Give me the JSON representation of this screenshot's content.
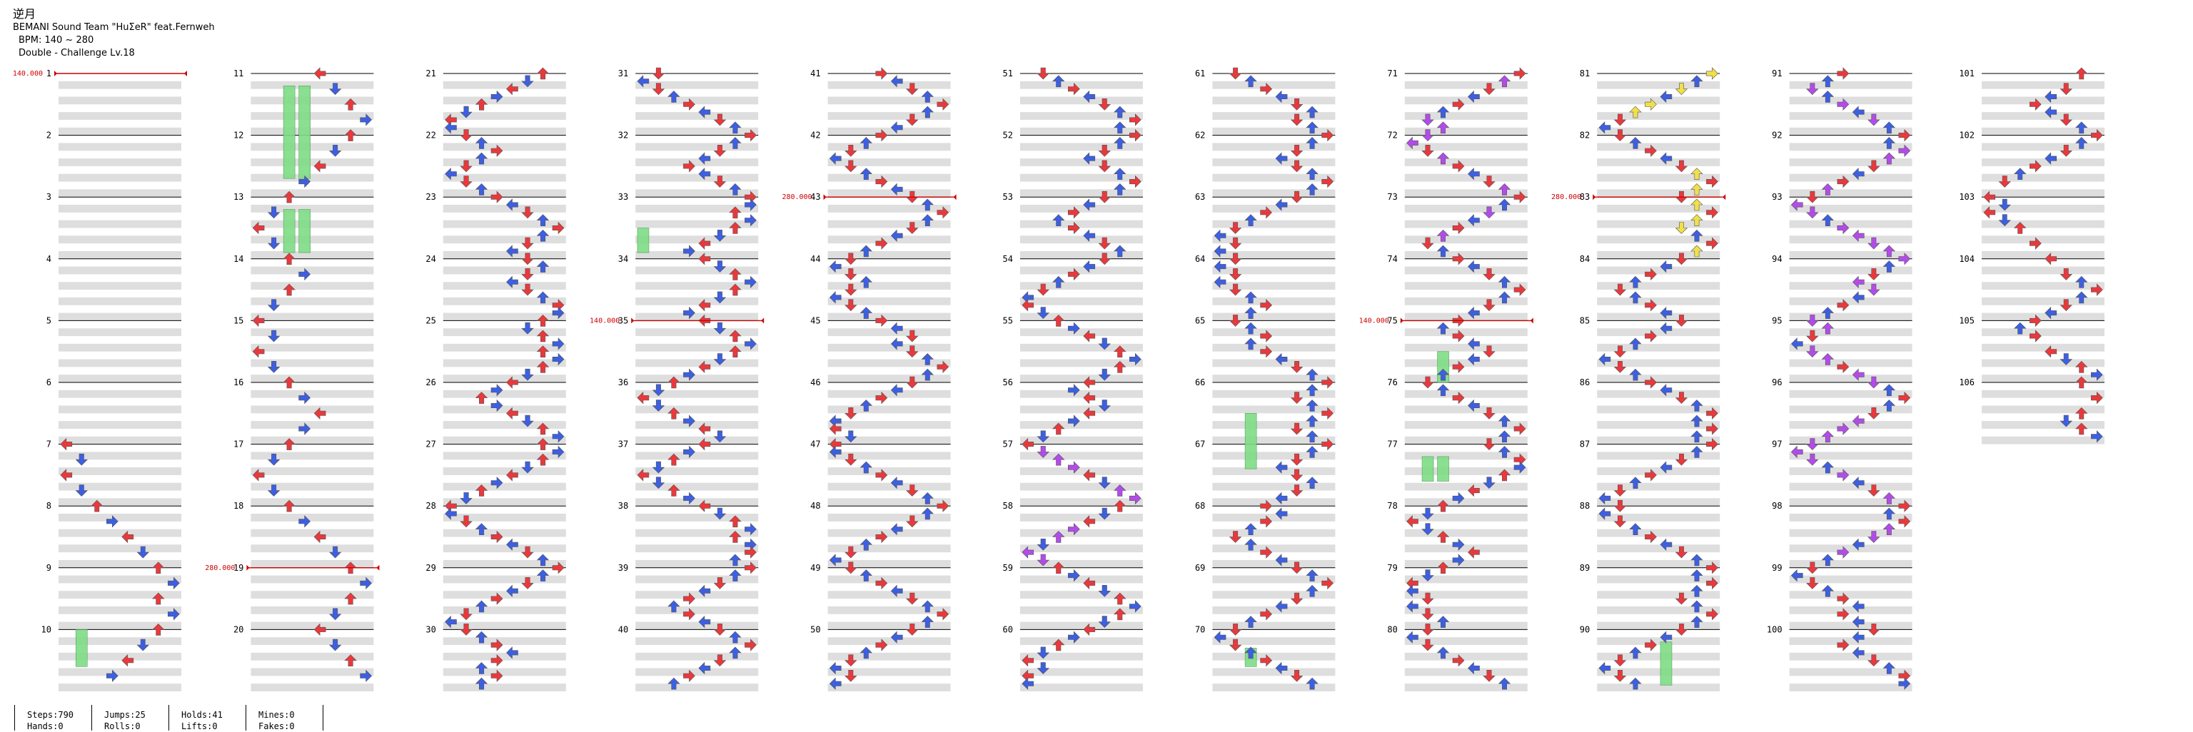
{
  "header": {
    "title": "逆月",
    "artist": "BEMANI Sound Team \"HuΣeR\" feat.Fernweh",
    "bpm": "BPM: 140 ~ 280",
    "difficulty": "Double - Challenge Lv.18"
  },
  "stats": {
    "steps": "Steps:790",
    "hands": "Hands:0",
    "jumps": "Jumps:25",
    "rolls": "Rolls:0",
    "holds": "Holds:41",
    "lifts": "Lifts:0",
    "mines": "Mines:0",
    "fakes": "Fakes:0"
  },
  "measure_labels": [
    "1",
    "2",
    "3",
    "4",
    "5",
    "6",
    "7",
    "8",
    "9",
    "10",
    "11",
    "12",
    "13",
    "14",
    "15",
    "16",
    "17",
    "18",
    "19",
    "20",
    "21",
    "22",
    "23",
    "24",
    "25",
    "26",
    "27",
    "28",
    "29",
    "30",
    "31",
    "32",
    "33",
    "34",
    "35",
    "36",
    "37",
    "38",
    "39",
    "40",
    "41",
    "42",
    "43",
    "44",
    "45",
    "46",
    "47",
    "48",
    "49",
    "50",
    "51",
    "52",
    "53",
    "54",
    "55",
    "56",
    "57",
    "58",
    "59",
    "60",
    "61",
    "62",
    "63",
    "64",
    "65",
    "66",
    "67",
    "68",
    "69",
    "70",
    "71",
    "72",
    "73",
    "74",
    "75",
    "76",
    "77",
    "78",
    "79",
    "80",
    "81",
    "82",
    "83",
    "84",
    "85",
    "86",
    "87",
    "88",
    "89",
    "90",
    "91",
    "92",
    "93",
    "94",
    "95",
    "96",
    "97",
    "98",
    "99",
    "100",
    "101",
    "102",
    "103",
    "104",
    "105",
    "106"
  ],
  "bpm_changes": [
    {
      "measure": 1,
      "label": "140.000"
    },
    {
      "measure": 19,
      "label": "280.000"
    },
    {
      "measure": 35,
      "label": "140.000"
    },
    {
      "measure": 43,
      "label": "280.000"
    },
    {
      "measure": 75,
      "label": "140.000"
    },
    {
      "measure": 83,
      "label": "280.000"
    }
  ],
  "colors": {
    "quarter": "#e8393d",
    "eighth": "#3d5fe0",
    "sixteenth": "#f0e04a",
    "twelfth": "#b24ce8",
    "hold": "#7fdc86",
    "band": "#dedede",
    "bpm": "#cc0000"
  }
}
